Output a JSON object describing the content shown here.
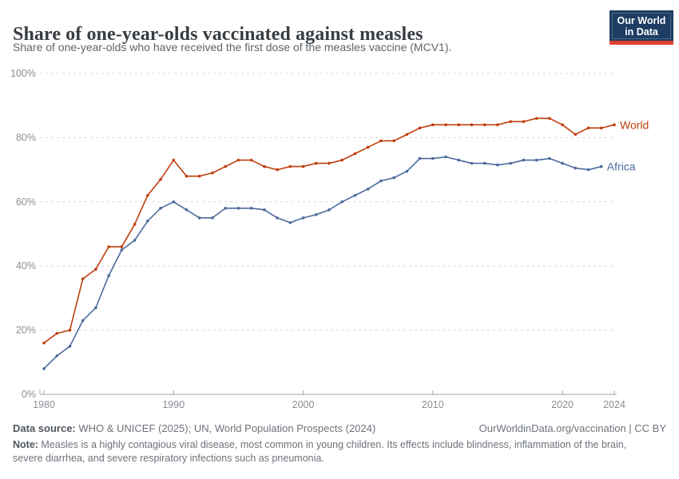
{
  "header": {
    "title": "Share of one-year-olds vaccinated against measles",
    "subtitle": "Share of one-year-olds who have received the first dose of the measles vaccine (MCV1).",
    "logo_line1": "Our World",
    "logo_line2": "in Data",
    "logo_bg_color": "#1d3d63",
    "logo_bar_color": "#dc3e31"
  },
  "chart_data": {
    "type": "line",
    "title": "Share of one-year-olds vaccinated against measles",
    "xlabel": "",
    "ylabel": "",
    "ylim": [
      0,
      100
    ],
    "yticks": [
      0,
      20,
      40,
      60,
      80,
      100
    ],
    "ytick_suffix": "%",
    "xticks": [
      1980,
      1990,
      2000,
      2010,
      2020,
      2024
    ],
    "grid": "horizontal-dashed",
    "legend": "end-of-line-labels",
    "x": [
      1980,
      1981,
      1982,
      1983,
      1984,
      1985,
      1986,
      1987,
      1988,
      1989,
      1990,
      1991,
      1992,
      1993,
      1994,
      1995,
      1996,
      1997,
      1998,
      1999,
      2000,
      2001,
      2002,
      2003,
      2004,
      2005,
      2006,
      2007,
      2008,
      2009,
      2010,
      2011,
      2012,
      2013,
      2014,
      2015,
      2016,
      2017,
      2018,
      2019,
      2020,
      2021,
      2022,
      2023,
      2024
    ],
    "series": [
      {
        "name": "World",
        "color": "#bf3e0d",
        "values": [
          16,
          19,
          20,
          36,
          39,
          46,
          46,
          53,
          62,
          67,
          73,
          68,
          68,
          69,
          71,
          73,
          73,
          71,
          70,
          71,
          71,
          72,
          72,
          73,
          75,
          77,
          79,
          79,
          81,
          83,
          84,
          84,
          84,
          84,
          84,
          84,
          85,
          85,
          86,
          86,
          84,
          81,
          83,
          83,
          84
        ]
      },
      {
        "name": "Africa",
        "color": "#4c6a9c",
        "values": [
          8,
          12,
          15,
          23,
          27,
          37,
          45,
          48,
          54,
          58,
          60,
          57.5,
          55,
          55,
          58,
          58,
          58,
          57.5,
          55,
          53.5,
          55,
          56,
          57.5,
          60,
          62,
          64,
          66.5,
          67.5,
          69.5,
          73.5,
          73.5,
          74,
          73,
          72,
          72,
          71.5,
          72,
          73,
          73,
          73.5,
          72,
          70.5,
          70,
          71,
          null
        ]
      }
    ]
  },
  "footer": {
    "datasource_label": "Data source:",
    "datasource_text": " WHO & UNICEF (2025); UN, World Population Prospects (2024)",
    "link_text": "OurWorldinData.org/vaccination | CC BY",
    "note_label": "Note:",
    "note_text": " Measles is a highly contagious viral disease, most common in young children. Its effects include blindness, inflammation of the brain, severe diarrhea, and severe respiratory infections such as pneumonia."
  },
  "style": {
    "grid_color": "#d9d9d9",
    "axis_color": "#a5a5a5",
    "tick_text_color": "#8a8f95"
  }
}
